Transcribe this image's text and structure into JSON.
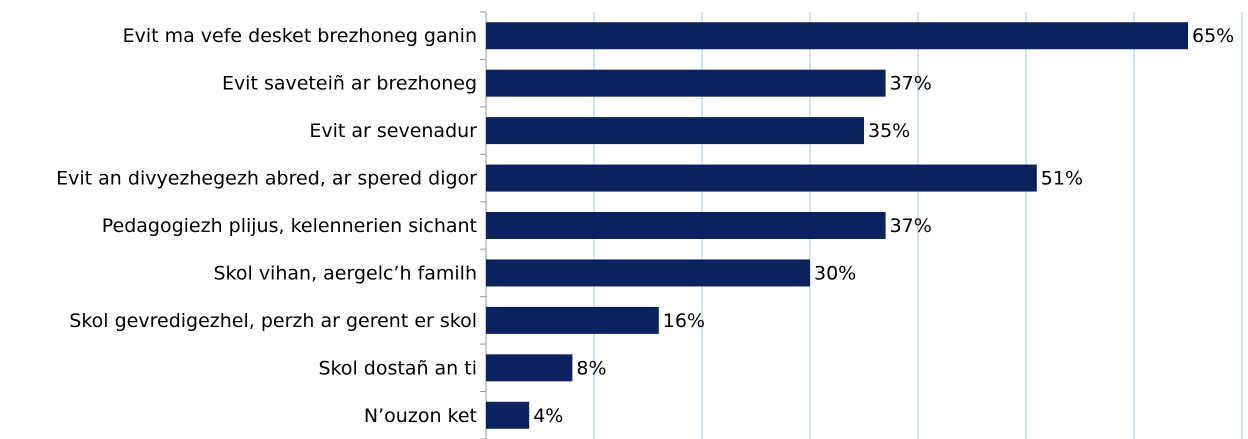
{
  "chart_data": {
    "type": "barh",
    "categories": [
      "Evit ma vefe desket brezhoneg ganin",
      "Evit saveteiñ ar brezhoneg",
      "Evit ar sevenadur",
      "Evit an divyezhegezh abred, ar spered digor",
      "Pedagogiezh plijus, kelennerien sichant",
      "Skol vihan, aergelc’h familh",
      "Skol gevredigezhel, perzh ar gerent er skol",
      "Skol dostañ an ti",
      "N’ouzon ket"
    ],
    "values": [
      65,
      37,
      35,
      51,
      37,
      30,
      16,
      8,
      4
    ],
    "value_labels": [
      "65%",
      "37%",
      "35%",
      "51%",
      "37%",
      "30%",
      "16%",
      "8%",
      "4%"
    ],
    "color": "#0c2260",
    "xlim": [
      0,
      70
    ],
    "xticks": [
      0,
      10,
      20,
      30,
      40,
      50,
      60,
      70
    ],
    "grid": true
  }
}
